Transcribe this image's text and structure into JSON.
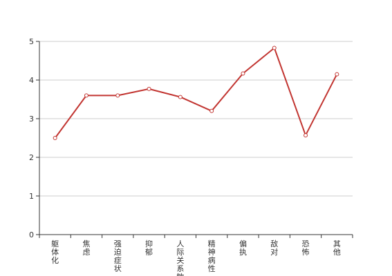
{
  "chart_data": {
    "type": "line",
    "categories": [
      "躯体化",
      "焦虑",
      "强迫症状",
      "抑郁",
      "人际关系敏感",
      "精神病性",
      "偏执",
      "敌对",
      "恐怖",
      "其他"
    ],
    "series": [
      {
        "values": [
          2.5,
          3.6,
          3.6,
          3.77,
          3.56,
          3.2,
          4.17,
          4.83,
          2.57,
          4.15
        ]
      }
    ],
    "y_ticks": [
      "0",
      "1",
      "2",
      "3",
      "4",
      "5"
    ],
    "ylim": [
      0,
      5
    ],
    "grid": true,
    "line_color": "#c23531",
    "point_fill": "#ffffff",
    "grid_color": "#cccccc",
    "axis_color": "#333333"
  }
}
